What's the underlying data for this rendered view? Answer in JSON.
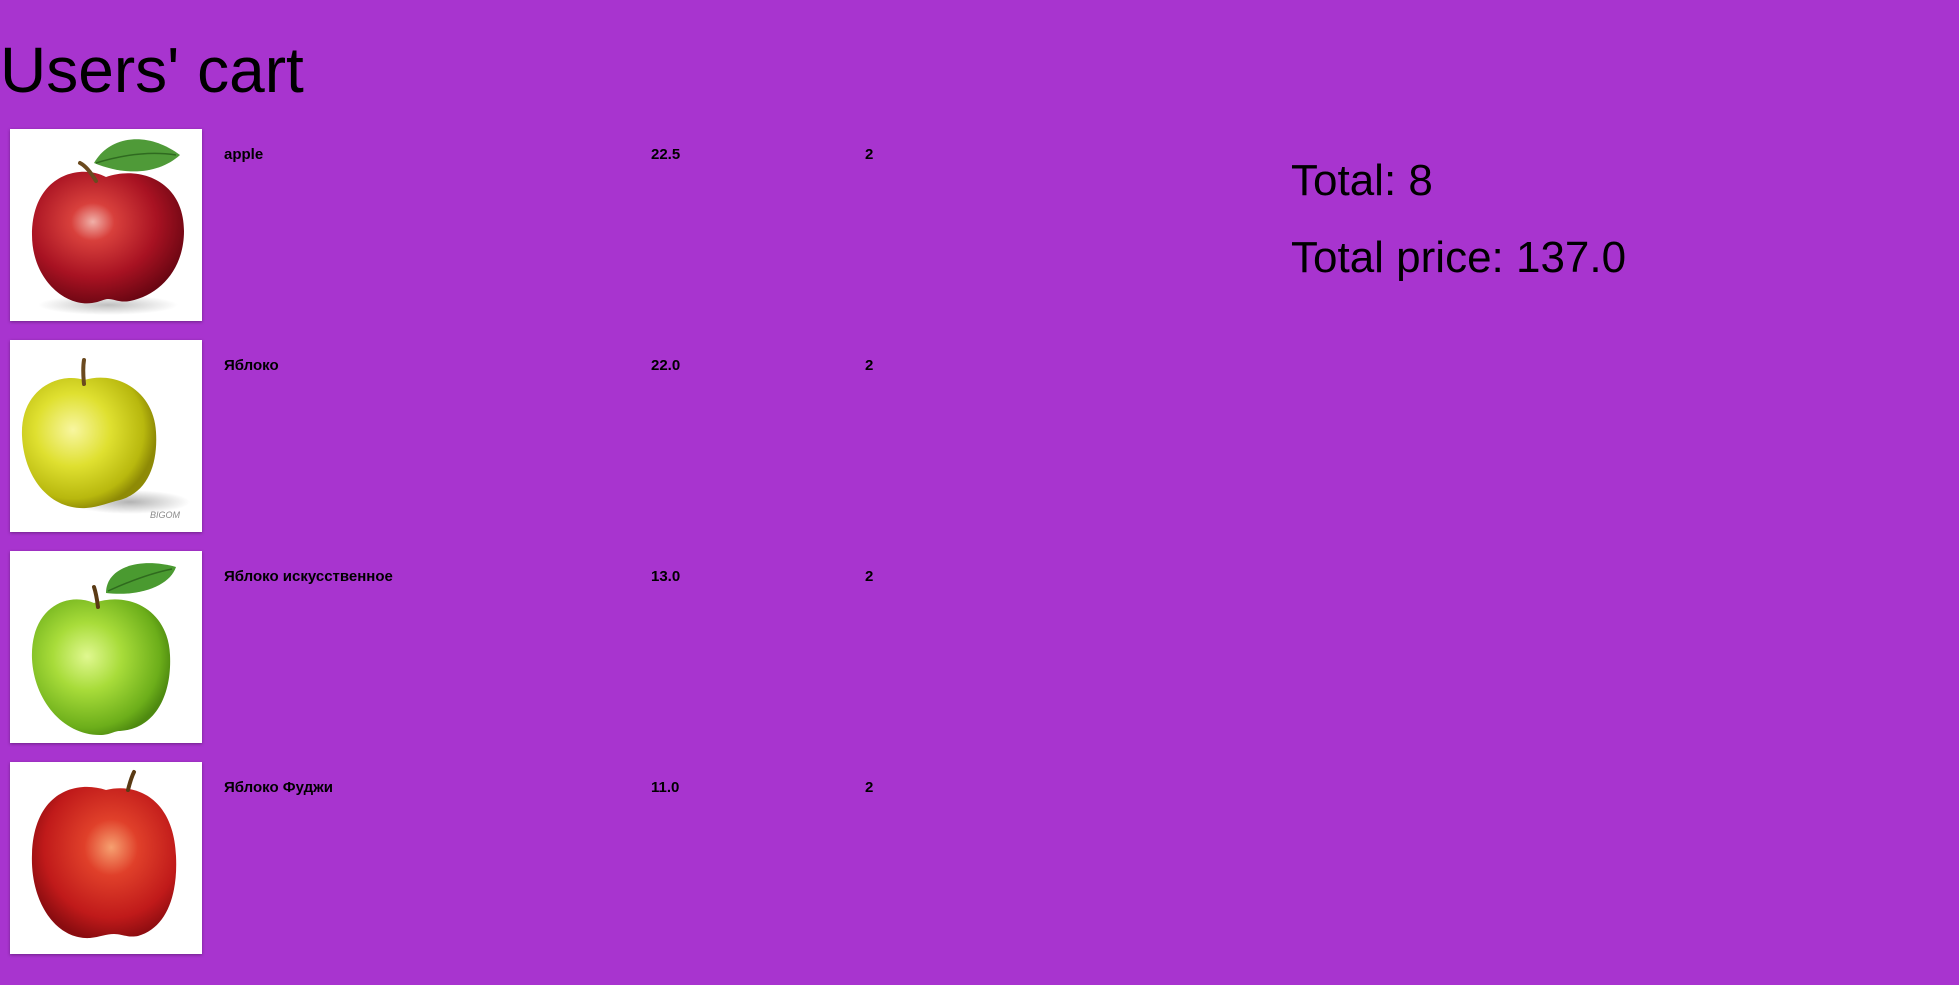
{
  "page": {
    "title": "Users' cart",
    "background_color": "#a834cf"
  },
  "cart": {
    "items": [
      {
        "name": "apple",
        "price": "22.5",
        "quantity": "2",
        "image": "red-apple-with-leaf"
      },
      {
        "name": "Яблоко",
        "price": "22.0",
        "quantity": "2",
        "image": "yellow-apple"
      },
      {
        "name": "Яблоко искусственное",
        "price": "13.0",
        "quantity": "2",
        "image": "green-apple-with-leaf"
      },
      {
        "name": "Яблоко Фуджи",
        "price": "11.0",
        "quantity": "2",
        "image": "red-fuji-apple"
      }
    ]
  },
  "summary": {
    "total_label": "Total: 8",
    "total_price_label": "Total price: 137.0"
  }
}
